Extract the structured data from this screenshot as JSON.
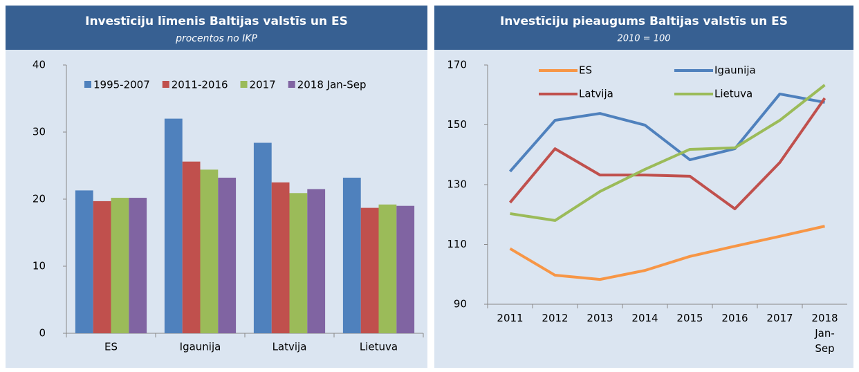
{
  "chart_data": [
    {
      "type": "bar",
      "title": "Investīciju līmenis Baltijas valstīs un ES",
      "subtitle": "procentos no IKP",
      "categories": [
        "ES",
        "Igaunija",
        "Latvija",
        "Lietuva"
      ],
      "series": [
        {
          "name": "1995-2007",
          "color": "#4f81bd",
          "values": [
            21.3,
            32.0,
            28.4,
            23.2
          ]
        },
        {
          "name": "2011-2016",
          "color": "#c0504d",
          "values": [
            19.7,
            25.6,
            22.5,
            18.7
          ]
        },
        {
          "name": "2017",
          "color": "#9bbb59",
          "values": [
            20.2,
            24.4,
            20.9,
            19.2
          ]
        },
        {
          "name": "2018 Jan-Sep",
          "color": "#8064a2",
          "values": [
            20.2,
            23.2,
            21.5,
            19.0
          ]
        }
      ],
      "ylim": [
        0,
        40
      ],
      "yticks": [
        0,
        10,
        20,
        30,
        40
      ],
      "grid": false,
      "legend": "top"
    },
    {
      "type": "line",
      "title": "Investīciju pieaugums Baltijas valstīs un ES",
      "subtitle": "2010 = 100",
      "categories": [
        "2011",
        "2012",
        "2013",
        "2014",
        "2015",
        "2016",
        "2017",
        "2018 Jan-Sep"
      ],
      "series": [
        {
          "name": "ES",
          "color": "#f79646",
          "values": [
            108.6,
            99.7,
            98.3,
            101.3,
            106.0,
            109.4,
            112.7,
            116.1
          ]
        },
        {
          "name": "Igaunija",
          "color": "#4f81bd",
          "values": [
            134.4,
            151.5,
            153.8,
            149.9,
            138.3,
            142.0,
            160.3,
            157.5
          ]
        },
        {
          "name": "Latvija",
          "color": "#c0504d",
          "values": [
            124.0,
            142.0,
            133.2,
            133.2,
            132.8,
            121.9,
            137.4,
            158.9
          ]
        },
        {
          "name": "Lietuva",
          "color": "#9bbb59",
          "values": [
            120.3,
            118.0,
            127.7,
            135.1,
            141.8,
            142.3,
            151.5,
            163.3
          ]
        }
      ],
      "ylim": [
        90,
        170
      ],
      "yticks": [
        90,
        110,
        130,
        150,
        170
      ],
      "grid": false,
      "legend": "top"
    }
  ]
}
